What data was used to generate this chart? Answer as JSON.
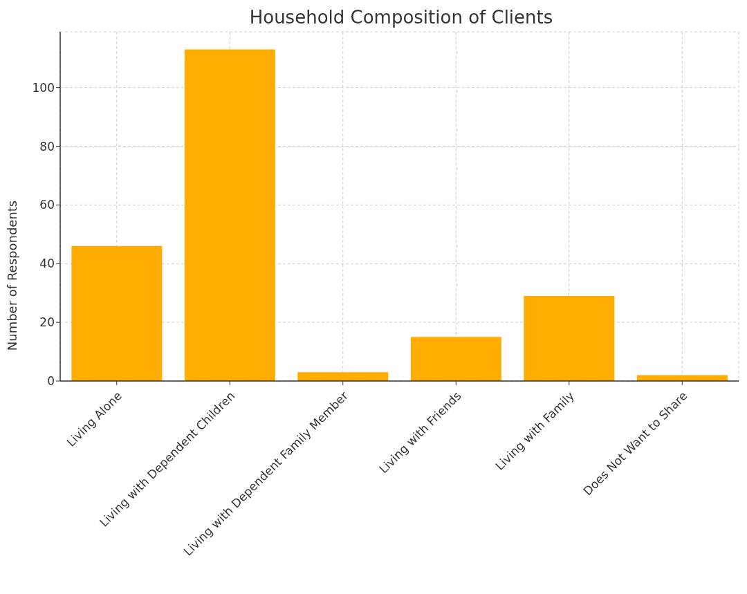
{
  "chart_data": {
    "type": "bar",
    "title": "Household Composition of Clients",
    "ylabel": "Number of Respondents",
    "categories": [
      "Living Alone",
      "Living with Dependent Children",
      "Living with Dependent Family Member",
      "Living with Friends",
      "Living with Family",
      "Does Not Want to Share"
    ],
    "values": [
      46,
      113,
      3,
      15,
      29,
      2
    ],
    "color": "#ffad00",
    "ylim": [
      0,
      119
    ],
    "yticks": [
      0,
      20,
      40,
      60,
      80,
      100
    ],
    "grid": true
  }
}
